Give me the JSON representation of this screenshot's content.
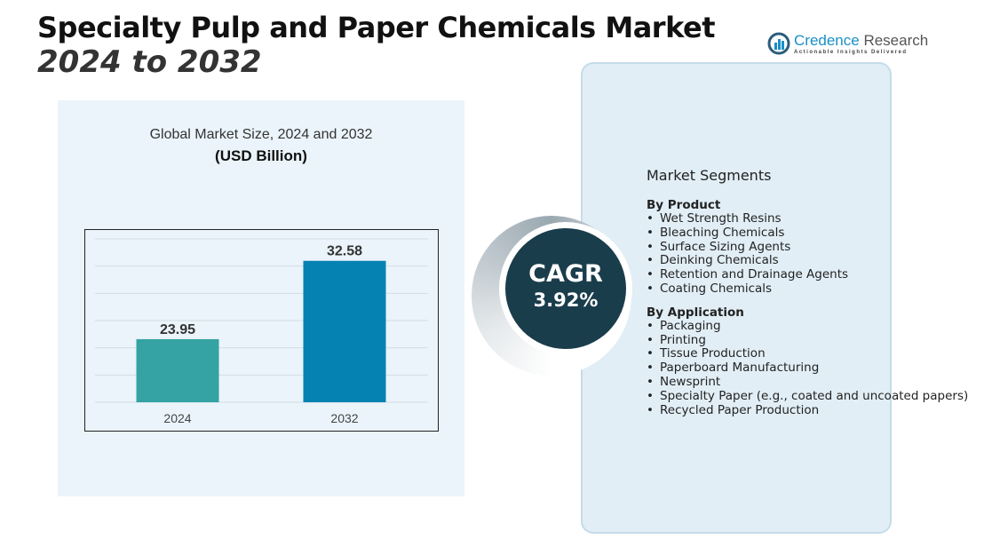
{
  "header": {
    "title": "Specialty Pulp and Paper Chemicals Market",
    "subtitle": "2024 to 2032"
  },
  "logo": {
    "name_part1": "Credence",
    "name_part2": " Research",
    "tagline": "Actionable Insights Delivered"
  },
  "cagr": {
    "label": "CAGR",
    "value": "3.92%"
  },
  "segments": {
    "title": "Market Segments",
    "groups": [
      {
        "heading": "By Product",
        "items": [
          "Wet Strength Resins",
          "Bleaching Chemicals",
          "Surface Sizing Agents",
          "Deinking Chemicals",
          "Retention and Drainage Agents",
          "Coating Chemicals"
        ]
      },
      {
        "heading": "By Application",
        "items": [
          "Packaging",
          "Printing",
          "Tissue Production",
          "Paperboard Manufacturing",
          "Newsprint",
          "Specialty Paper (e.g., coated and uncoated papers)",
          "Recycled Paper Production"
        ]
      }
    ]
  },
  "chart_data": {
    "type": "bar",
    "title": "Global Market Size, 2024 and 2032",
    "subtitle": "(USD Billion)",
    "categories": [
      "2024",
      "2032"
    ],
    "values": [
      23.95,
      32.58
    ],
    "value_labels": [
      "23.95",
      "32.58"
    ],
    "colors": [
      "#35a3a3",
      "#0682b2"
    ],
    "xlabel": "",
    "ylabel": "",
    "ylim": [
      17,
      35
    ],
    "grid": true
  }
}
